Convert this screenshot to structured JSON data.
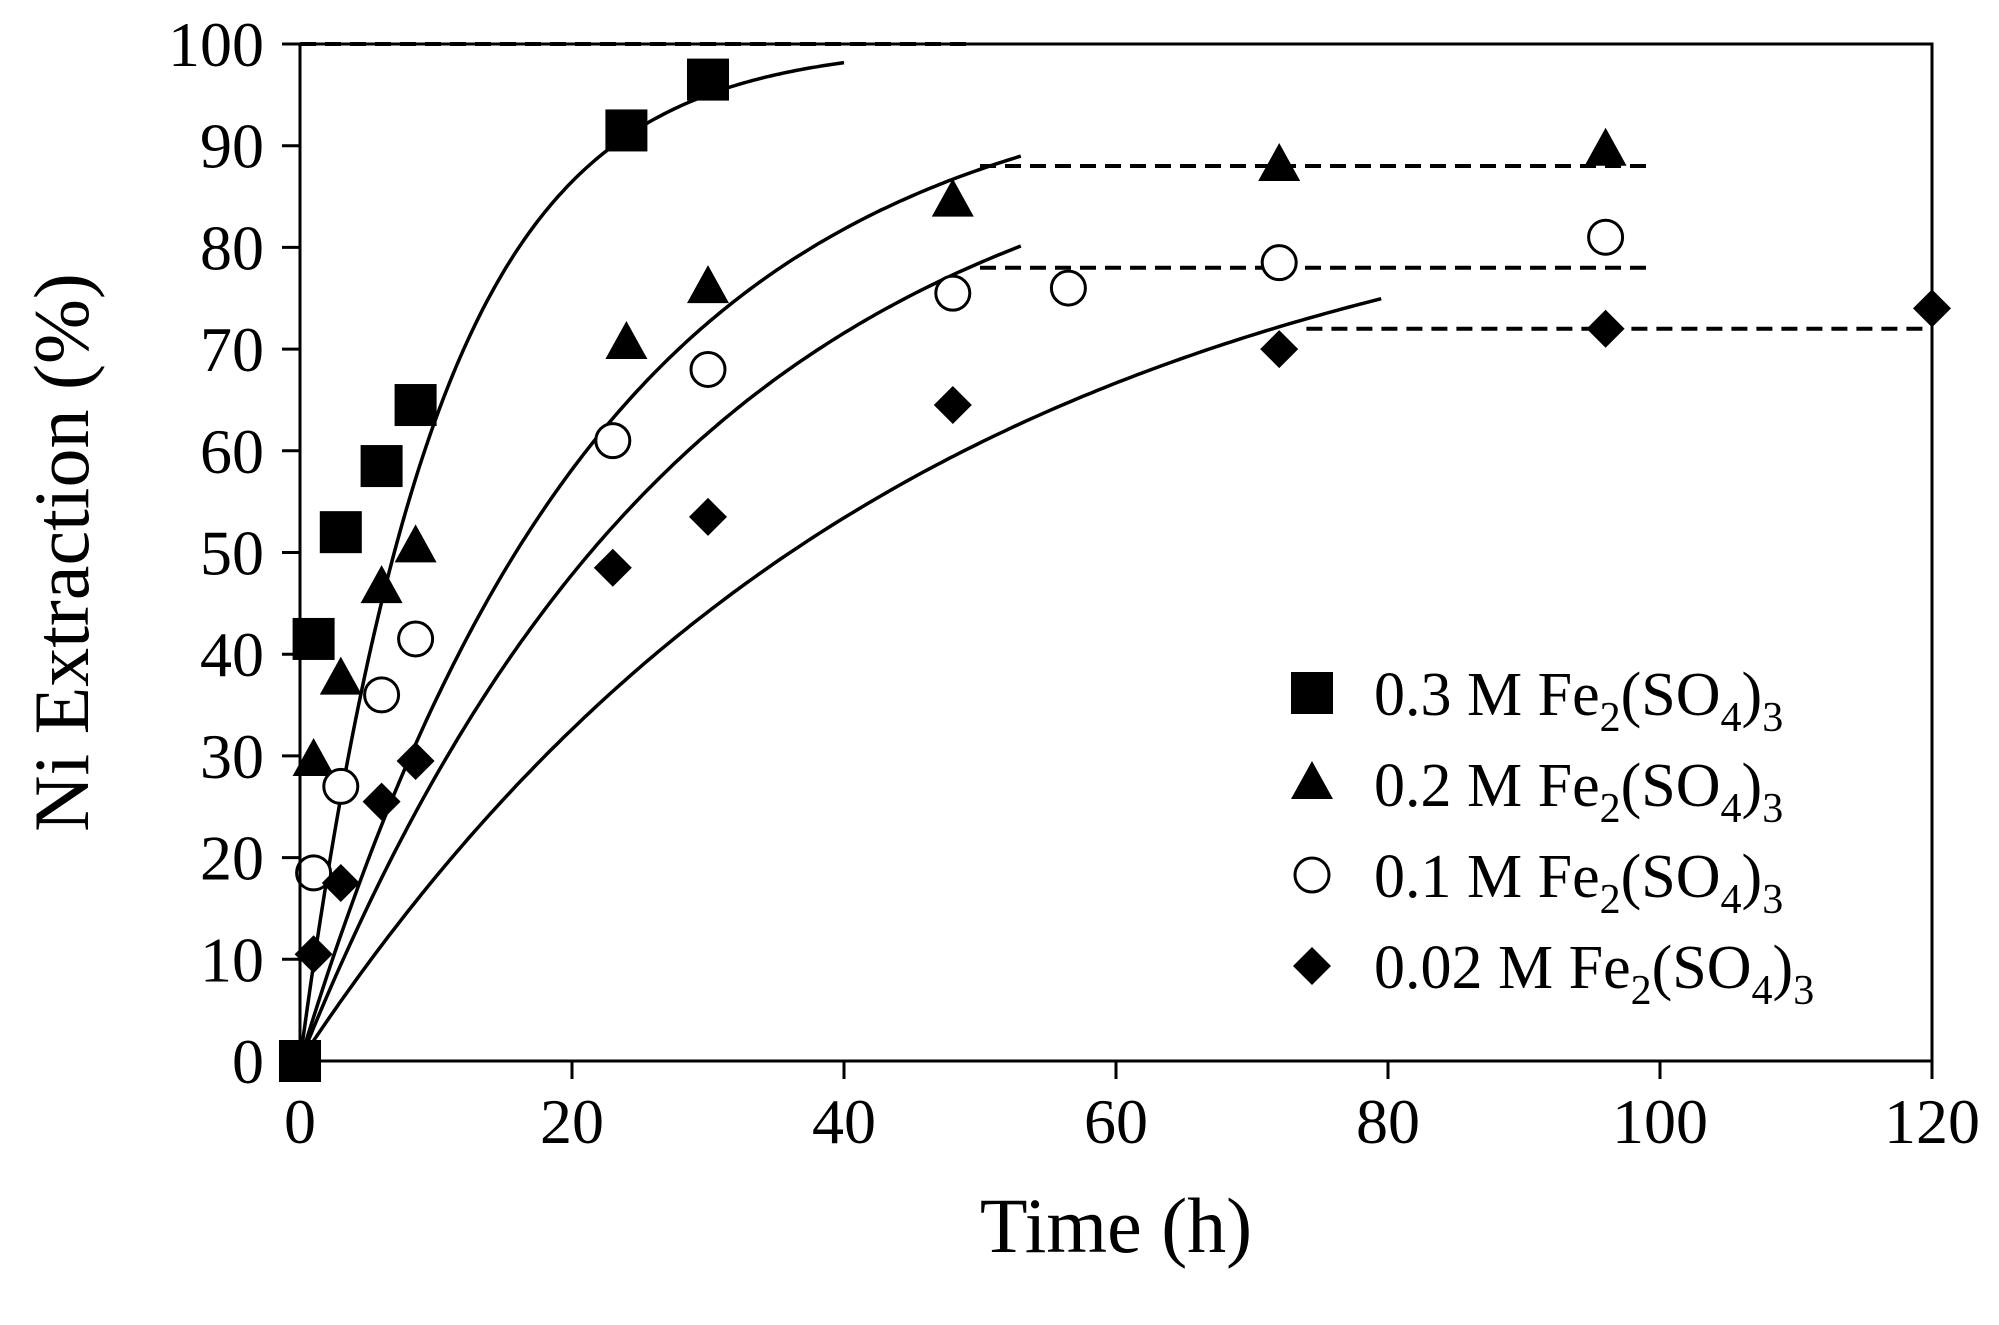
{
  "chart_data": {
    "type": "scatter",
    "title": "",
    "xlabel": "Time (h)",
    "ylabel": "Ni Extraction (%)",
    "xlim": [
      0,
      120
    ],
    "ylim": [
      0,
      100
    ],
    "xticks": [
      0,
      20,
      40,
      60,
      80,
      100,
      120
    ],
    "yticks": [
      0,
      10,
      20,
      30,
      40,
      50,
      60,
      70,
      80,
      90,
      100
    ],
    "grid": false,
    "legend_position": "bottom-right",
    "series": [
      {
        "name": "0.3 M Fe2(SO4)3",
        "legend": {
          "pre": "0.3 M Fe",
          "sub1": "2",
          "mid": "(SO",
          "sub2": "4",
          "post": ")",
          "sub3": "3"
        },
        "marker": "square",
        "x": [
          0,
          1,
          3,
          6,
          8.5,
          24,
          30
        ],
        "y": [
          0,
          41.5,
          52,
          58.5,
          64.5,
          91.5,
          96.5
        ],
        "fit_k": 0.1,
        "fit_max": 100,
        "fit_xmax": 40,
        "plateau": {
          "y": 100,
          "x": [
            0,
            49.5
          ]
        }
      },
      {
        "name": "0.2 M Fe2(SO4)3",
        "legend": {
          "pre": "0.2 M Fe",
          "sub1": "2",
          "mid": "(SO",
          "sub2": "4",
          "post": ")",
          "sub3": "3"
        },
        "marker": "triangle",
        "x": [
          1,
          3,
          6,
          8.5,
          24,
          30,
          48,
          72,
          96
        ],
        "y": [
          29.5,
          37.5,
          46.5,
          50.5,
          70.5,
          76,
          84.5,
          88,
          89.5
        ],
        "fit_k": 0.045,
        "fit_max": 98,
        "fit_xmax": 53,
        "plateau": {
          "y": 88,
          "x": [
            50,
            99.5
          ]
        }
      },
      {
        "name": "0.1 M Fe2(SO4)3",
        "legend": {
          "pre": "0.1 M Fe",
          "sub1": "2",
          "mid": "(SO",
          "sub2": "4",
          "post": ")",
          "sub3": "3"
        },
        "marker": "open-circle",
        "x": [
          1,
          3,
          6,
          8.5,
          23,
          30,
          48,
          56.5,
          72,
          96
        ],
        "y": [
          18.5,
          27,
          36,
          41.5,
          61,
          68,
          75.5,
          76,
          78.5,
          81
        ],
        "fit_k": 0.035,
        "fit_max": 95,
        "fit_xmax": 53,
        "plateau": {
          "y": 78,
          "x": [
            50,
            99.5
          ]
        }
      },
      {
        "name": "0.02 M Fe2(SO4)3",
        "legend": {
          "pre": "0.02 M Fe",
          "sub1": "2",
          "mid": "(SO",
          "sub2": "4",
          "post": ")",
          "sub3": "3"
        },
        "marker": "diamond",
        "x": [
          1,
          3,
          6,
          8.5,
          23,
          30,
          48,
          72,
          96,
          120
        ],
        "y": [
          10.5,
          17.5,
          25.5,
          29.5,
          48.5,
          53.5,
          64.5,
          70,
          72,
          74
        ],
        "fit_k": 0.0225,
        "fit_max": 90,
        "fit_xmax": 79.5,
        "plateau": {
          "y": 72,
          "x": [
            74,
            119.5
          ]
        }
      }
    ]
  }
}
